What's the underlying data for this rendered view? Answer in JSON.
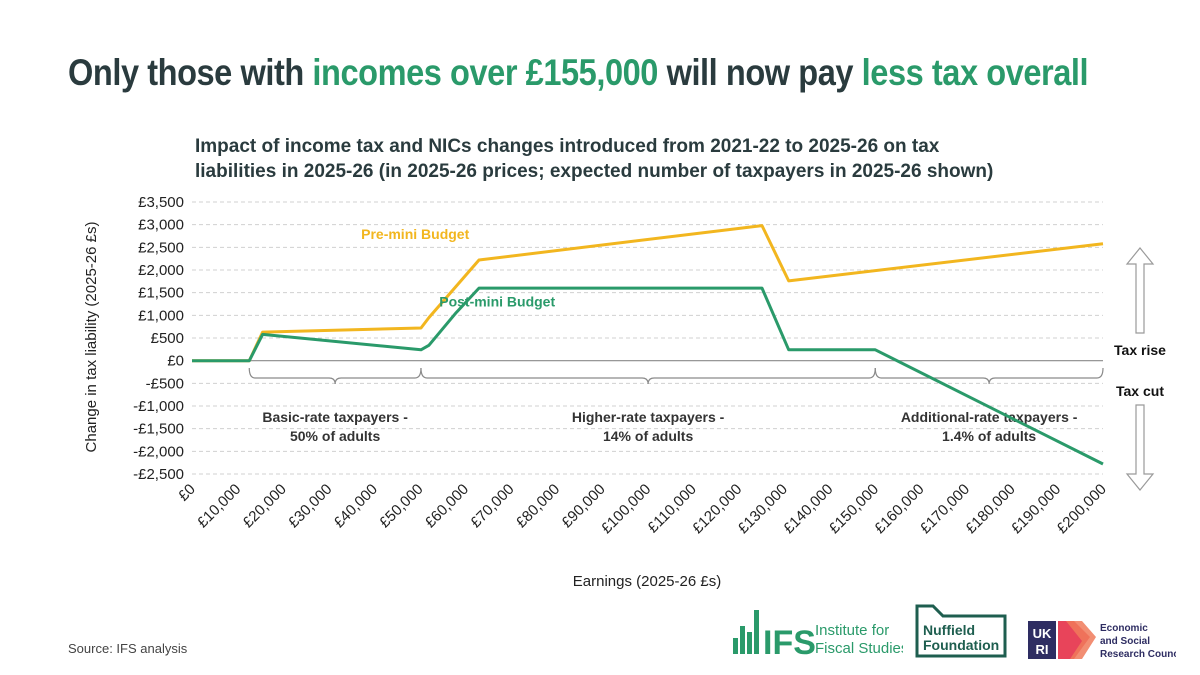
{
  "headline": {
    "part1": "Only those with ",
    "part2": "incomes over £155,000",
    "part3": " will now pay ",
    "part4": "less tax overall"
  },
  "colors": {
    "dark": "#2a3b3e",
    "green": "#2a9a6a",
    "gold": "#f2b61f",
    "grid": "#d0d0d0",
    "axis_text": "#222222"
  },
  "source": "Source: IFS analysis",
  "logos": {
    "ifs_short": "IFS",
    "ifs_line1": "Institute for",
    "ifs_line2": "Fiscal Studies",
    "nuffield_line1": "Nuffield",
    "nuffield_line2": "Foundation",
    "ukri_uk": "UK",
    "ukri_ri": "RI",
    "esrc_line1": "Economic",
    "esrc_line2": "and Social",
    "esrc_line3": "Research Council"
  },
  "chart_data": {
    "type": "line",
    "title_line1": "Impact of income tax and NICs changes introduced from 2021-22 to 2025-26 on tax",
    "title_line2": "liabilities in 2025-26 (in 2025-26 prices; expected number of taxpayers in 2025-26 shown)",
    "xlabel": "Earnings  (2025-26 £s)",
    "ylabel": "Change  in tax liability (2025-26 £s)",
    "xlim": [
      0,
      200000
    ],
    "ylim": [
      -2500,
      3500
    ],
    "x_ticks": [
      0,
      10000,
      20000,
      30000,
      40000,
      50000,
      60000,
      70000,
      80000,
      90000,
      100000,
      110000,
      120000,
      130000,
      140000,
      150000,
      160000,
      170000,
      180000,
      190000,
      200000
    ],
    "x_tick_labels": [
      "£0",
      "£10,000",
      "£20,000",
      "£30,000",
      "£40,000",
      "£50,000",
      "£60,000",
      "£70,000",
      "£80,000",
      "£90,000",
      "£100,000",
      "£110,000",
      "£120,000",
      "£130,000",
      "£140,000",
      "£150,000",
      "£160,000",
      "£170,000",
      "£180,000",
      "£190,000",
      "£200,000"
    ],
    "y_ticks": [
      3500,
      3000,
      2500,
      2000,
      1500,
      1000,
      500,
      0,
      -500,
      -1000,
      -1500,
      -2000,
      -2500
    ],
    "y_tick_labels": [
      "£3,500",
      "£3,000",
      "£2,500",
      "£2,000",
      "£1,500",
      "£1,000",
      "£500",
      "£0",
      "-£500",
      "-£1,000",
      "-£1,500",
      "-£2,000",
      "-£2,500"
    ],
    "grid": true,
    "series": [
      {
        "name": "Pre-mini Budget",
        "label": "Pre-mini Budget",
        "color": "#f2b61f",
        "label_at": [
          49000,
          2680
        ],
        "points": [
          [
            0,
            0
          ],
          [
            12570,
            0
          ],
          [
            15500,
            630
          ],
          [
            50270,
            720
          ],
          [
            52000,
            950
          ],
          [
            63000,
            2220
          ],
          [
            125140,
            2980
          ],
          [
            131000,
            1760
          ],
          [
            200000,
            2580
          ]
        ]
      },
      {
        "name": "Post-mini Budget",
        "label": "Post-mini Budget",
        "color": "#2a9a6a",
        "label_at": [
          67000,
          1200
        ],
        "points": [
          [
            0,
            0
          ],
          [
            12570,
            0
          ],
          [
            15500,
            580
          ],
          [
            50270,
            240
          ],
          [
            52000,
            340
          ],
          [
            58000,
            1060
          ],
          [
            63000,
            1600
          ],
          [
            125140,
            1600
          ],
          [
            131000,
            240
          ],
          [
            150000,
            240
          ],
          [
            200000,
            -2280
          ]
        ]
      }
    ],
    "groups": [
      {
        "label_line1": "Basic-rate taxpayers -",
        "label_line2": "50% of adults",
        "from": 12570,
        "to": 50270
      },
      {
        "label_line1": "Higher-rate taxpayers -",
        "label_line2": "14% of adults",
        "from": 50270,
        "to": 150000
      },
      {
        "label_line1": "Additional-rate taxpayers -",
        "label_line2": "1.4% of adults",
        "from": 150000,
        "to": 200000
      }
    ],
    "annotations": {
      "tax_rise": "Tax rise",
      "tax_cut": "Tax cut"
    }
  }
}
